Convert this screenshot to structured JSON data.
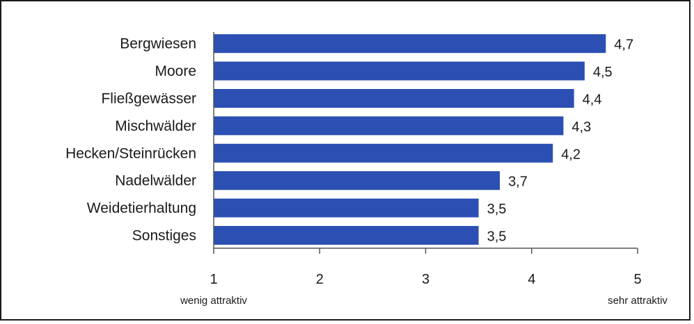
{
  "chart_data": {
    "type": "bar",
    "orientation": "horizontal",
    "categories": [
      "Bergwiesen",
      "Moore",
      "Fließgewässer",
      "Mischwälder",
      "Hecken/Steinrücken",
      "Nadelwälder",
      "Weidetierhaltung",
      "Sonstiges"
    ],
    "values": [
      4.7,
      4.5,
      4.4,
      4.3,
      4.2,
      3.7,
      3.5,
      3.5
    ],
    "value_labels": [
      "4,7",
      "4,5",
      "4,4",
      "4,3",
      "4,2",
      "3,7",
      "3,5",
      "3,5"
    ],
    "xlim": [
      1,
      5
    ],
    "x_ticks": [
      "1",
      "2",
      "3",
      "4",
      "5"
    ],
    "x_min_label": "wenig attraktiv",
    "x_max_label": "sehr attraktiv",
    "grid": false,
    "bar_color": "#2b4fb3"
  }
}
